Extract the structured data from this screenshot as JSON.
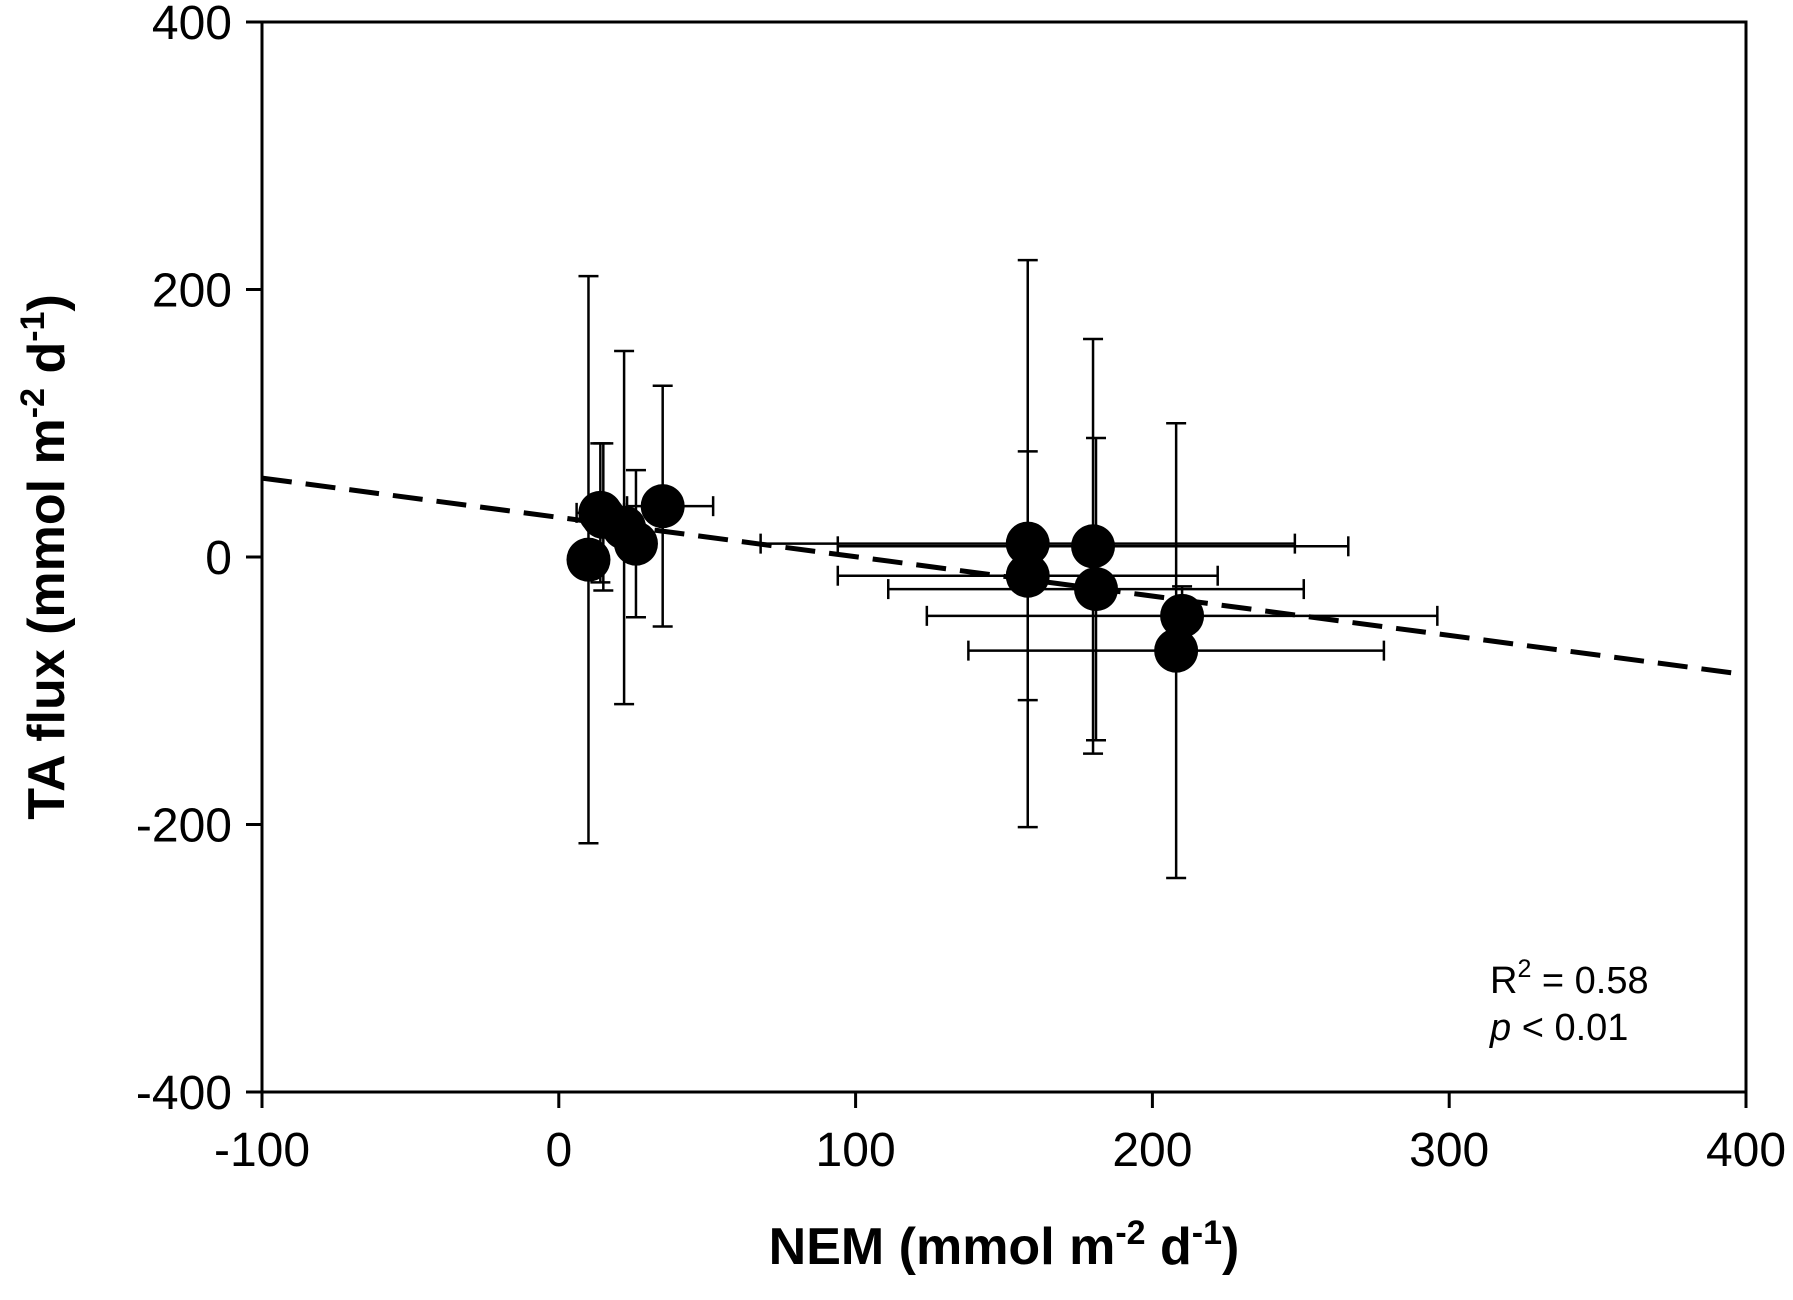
{
  "chart_data": {
    "type": "scatter",
    "title": "",
    "xlabel": {
      "main": "NEM (mmol m",
      "sup1": "-2",
      "mid": " d",
      "sup2": "-1",
      "end": ")"
    },
    "ylabel": {
      "main": "TA flux (mmol m",
      "sup1": "-2",
      "mid": " d",
      "sup2": "-1",
      "end": ")"
    },
    "xlim": [
      -100,
      400
    ],
    "ylim": [
      -400,
      400
    ],
    "x_ticks": [
      -100,
      0,
      100,
      200,
      300,
      400
    ],
    "y_ticks": [
      -400,
      -200,
      0,
      200,
      400
    ],
    "x_tick_labels": [
      "-100",
      "0",
      "100",
      "200",
      "300",
      "400"
    ],
    "y_tick_labels": [
      "-400",
      "-200",
      "0",
      "200",
      "400"
    ],
    "grid": false,
    "marker_color": "#000000",
    "points": [
      {
        "x": 10,
        "y": -2,
        "xerr_minus": 5,
        "xerr_plus": 5,
        "yerr": 212
      },
      {
        "x": 14,
        "y": 33,
        "xerr_minus": 8,
        "xerr_plus": 8,
        "yerr": 52
      },
      {
        "x": 15,
        "y": 30,
        "xerr_minus": 5,
        "xerr_plus": 5,
        "yerr": 55
      },
      {
        "x": 22,
        "y": 22,
        "xerr_minus": 5,
        "xerr_plus": 5,
        "yerr": 132
      },
      {
        "x": 26,
        "y": 10,
        "xerr_minus": 5,
        "xerr_plus": 5,
        "yerr": 55
      },
      {
        "x": 35,
        "y": 38,
        "xerr_minus": 12,
        "xerr_plus": 17,
        "yerr": 90
      },
      {
        "x": 158,
        "y": 10,
        "xerr_minus": 90,
        "xerr_plus": 90,
        "yerr": 212
      },
      {
        "x": 158,
        "y": -14,
        "xerr_minus": 64,
        "xerr_plus": 64,
        "yerr": 93
      },
      {
        "x": 180,
        "y": 8,
        "xerr_minus": 86,
        "xerr_plus": 86,
        "yerr": 155
      },
      {
        "x": 181,
        "y": -24,
        "xerr_minus": 70,
        "xerr_plus": 70,
        "yerr": 113
      },
      {
        "x": 210,
        "y": -44,
        "xerr_minus": 86,
        "xerr_plus": 86,
        "yerr": 22
      },
      {
        "x": 208,
        "y": -70,
        "xerr_minus": 70,
        "xerr_plus": 70,
        "yerr": 170
      }
    ],
    "fit_line": {
      "style": "dashed",
      "x": [
        -100,
        400
      ],
      "y": [
        59,
        -88
      ]
    },
    "annotations": {
      "r_label": "R",
      "r_sup": "2",
      "r_value": " = 0.58",
      "p_label": "p",
      "p_value": " < 0.01"
    }
  }
}
